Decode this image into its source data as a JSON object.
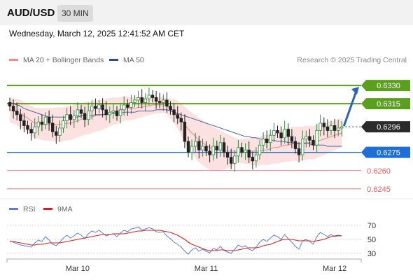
{
  "header": {
    "pair": "AUD/USD",
    "timeframe": "30 MIN"
  },
  "datetime": "Wednesday, March 12, 2025 12:41:52 AM CET",
  "legend": [
    {
      "label": "MA 20 + Bollinger Bands",
      "color": "#f28b82"
    },
    {
      "label": "MA 50",
      "color": "#2b4e8c"
    }
  ],
  "credit": "Research © 2025 Trading Central",
  "rsi_legend": [
    {
      "label": "RSI",
      "color": "#5b7fd6"
    },
    {
      "label": "9MA",
      "color": "#d62020"
    }
  ],
  "chart_data": [
    {
      "type": "candlestick",
      "y_range": [
        0.6238,
        0.6345
      ],
      "x_ticks": [
        {
          "label": "Mar 10",
          "index": 19
        },
        {
          "label": "Mar 11",
          "index": 55
        },
        {
          "label": "Mar 12",
          "index": 91
        }
      ],
      "levels": [
        {
          "value": 0.633,
          "label": "0.6330",
          "kind": "resistance",
          "color": "#5aa01e",
          "badge": true
        },
        {
          "value": 0.6315,
          "label": "0.6315",
          "kind": "resistance",
          "color": "#5aa01e",
          "badge": true
        },
        {
          "value": 0.6296,
          "label": "0.6296",
          "kind": "last",
          "color": "#222222",
          "badge": true
        },
        {
          "value": 0.6275,
          "label": "0.6275",
          "kind": "pivot",
          "color": "#1d6fd6",
          "badge": true
        },
        {
          "value": 0.626,
          "label": "0.6260",
          "kind": "support",
          "color": "#e06060",
          "badge": false
        },
        {
          "value": 0.6245,
          "label": "0.6245",
          "kind": "support",
          "color": "#e06060",
          "badge": false
        }
      ],
      "close": [
        0.6313,
        0.6309,
        0.6306,
        0.6301,
        0.6297,
        0.6294,
        0.6291,
        0.6296,
        0.63,
        0.6298,
        0.6304,
        0.6299,
        0.6292,
        0.6289,
        0.6295,
        0.6301,
        0.6306,
        0.6302,
        0.6305,
        0.631,
        0.6307,
        0.6302,
        0.6309,
        0.6313,
        0.6311,
        0.6314,
        0.631,
        0.6306,
        0.6308,
        0.6309,
        0.6305,
        0.631,
        0.6314,
        0.6312,
        0.6316,
        0.6318,
        0.632,
        0.6316,
        0.6319,
        0.6322,
        0.632,
        0.6317,
        0.6316,
        0.6318,
        0.6313,
        0.631,
        0.6306,
        0.6303,
        0.63,
        0.6284,
        0.6275,
        0.628,
        0.6284,
        0.6277,
        0.628,
        0.6276,
        0.6273,
        0.628,
        0.6277,
        0.6283,
        0.6275,
        0.6271,
        0.6266,
        0.6272,
        0.6279,
        0.6275,
        0.6277,
        0.6271,
        0.6268,
        0.6273,
        0.6281,
        0.6286,
        0.6283,
        0.6289,
        0.6293,
        0.6291,
        0.6287,
        0.6294,
        0.6288,
        0.6284,
        0.6278,
        0.6273,
        0.6286,
        0.6288,
        0.6285,
        0.6281,
        0.6293,
        0.6299,
        0.6296,
        0.6293,
        0.6297,
        0.6293,
        0.6295,
        0.6296
      ],
      "ma20": [
        0.631,
        0.6309,
        0.6308,
        0.6307,
        0.6305,
        0.6303,
        0.6301,
        0.6299,
        0.6299,
        0.6298,
        0.6298,
        0.6298,
        0.6298,
        0.6298,
        0.6298,
        0.6298,
        0.6299,
        0.6299,
        0.63,
        0.6301,
        0.6302,
        0.6303,
        0.6303,
        0.6304,
        0.6305,
        0.6305,
        0.6306,
        0.6307,
        0.6308,
        0.6309,
        0.6309,
        0.631,
        0.6311,
        0.6311,
        0.6311,
        0.6311,
        0.6312,
        0.6312,
        0.6313,
        0.6313,
        0.6314,
        0.6314,
        0.6314,
        0.6314,
        0.6313,
        0.6311,
        0.6309,
        0.6306,
        0.6302,
        0.6298,
        0.6294,
        0.6291,
        0.6288,
        0.6285,
        0.6283,
        0.6281,
        0.6279,
        0.6278,
        0.6277,
        0.6277,
        0.6276,
        0.6276,
        0.6276,
        0.6276,
        0.6276,
        0.6276,
        0.6276,
        0.6276,
        0.6276,
        0.6276,
        0.6276,
        0.6277,
        0.6277,
        0.6278,
        0.6279,
        0.6279,
        0.628,
        0.6281,
        0.6281,
        0.6282,
        0.6282,
        0.6282,
        0.6282,
        0.6283,
        0.6283,
        0.6283,
        0.6284,
        0.6285,
        0.6286,
        0.6287,
        0.6288,
        0.6289,
        0.629,
        0.6291
      ],
      "ma50": [
        0.6316,
        0.6315,
        0.6314,
        0.6313,
        0.6311,
        0.631,
        0.6309,
        0.6308,
        0.6307,
        0.6306,
        0.6305,
        0.6304,
        0.6304,
        0.6304,
        0.6304,
        0.6304,
        0.6304,
        0.6304,
        0.6304,
        0.6304,
        0.6305,
        0.6305,
        0.6305,
        0.6305,
        0.6306,
        0.6306,
        0.6306,
        0.6306,
        0.6307,
        0.6307,
        0.6307,
        0.6307,
        0.6308,
        0.6308,
        0.6308,
        0.6308,
        0.6309,
        0.6309,
        0.6309,
        0.6309,
        0.6309,
        0.631,
        0.631,
        0.631,
        0.631,
        0.6309,
        0.6308,
        0.6307,
        0.6306,
        0.6305,
        0.6304,
        0.6303,
        0.6302,
        0.6301,
        0.63,
        0.6299,
        0.6298,
        0.6297,
        0.6296,
        0.6295,
        0.6294,
        0.6293,
        0.6292,
        0.6291,
        0.629,
        0.6289,
        0.6288,
        0.6288,
        0.6287,
        0.6287,
        0.6286,
        0.6286,
        0.6285,
        0.6285,
        0.6285,
        0.6284,
        0.6284,
        0.6284,
        0.6283,
        0.6283,
        0.6283,
        0.6282,
        0.6282,
        0.6282,
        0.6282,
        0.6281,
        0.6281,
        0.6281,
        0.6281,
        0.628,
        0.628,
        0.628,
        0.628,
        0.628
      ],
      "projection": {
        "from_index": 93,
        "from_value": 0.6296,
        "to_value": 0.633
      }
    },
    {
      "type": "line",
      "title": "RSI",
      "y_range": [
        20,
        80
      ],
      "y_ticks": [
        70,
        50,
        30
      ],
      "rsi": [
        48,
        46,
        44,
        42,
        41,
        40,
        39,
        45,
        49,
        47,
        54,
        49,
        43,
        41,
        46,
        52,
        56,
        52,
        55,
        59,
        56,
        51,
        58,
        62,
        60,
        63,
        59,
        55,
        57,
        58,
        54,
        59,
        63,
        61,
        65,
        66,
        68,
        63,
        65,
        67,
        65,
        61,
        60,
        61,
        55,
        51,
        46,
        43,
        39,
        33,
        29,
        35,
        38,
        33,
        36,
        33,
        31,
        37,
        35,
        40,
        34,
        32,
        30,
        36,
        42,
        39,
        41,
        36,
        34,
        39,
        46,
        50,
        47,
        52,
        56,
        54,
        50,
        57,
        51,
        46,
        40,
        36,
        48,
        50,
        47,
        43,
        54,
        60,
        57,
        54,
        57,
        54,
        55,
        55
      ],
      "rsi_ma": [
        47,
        47,
        46,
        45,
        44,
        43,
        42,
        42,
        43,
        43,
        44,
        45,
        45,
        45,
        45,
        46,
        47,
        48,
        49,
        50,
        51,
        52,
        53,
        54,
        55,
        56,
        57,
        57,
        57,
        58,
        58,
        58,
        58,
        59,
        60,
        61,
        62,
        62,
        63,
        63,
        63,
        63,
        63,
        62,
        61,
        60,
        58,
        56,
        53,
        50,
        46,
        43,
        41,
        39,
        37,
        35,
        34,
        34,
        34,
        35,
        35,
        34,
        34,
        34,
        35,
        36,
        37,
        38,
        38,
        38,
        39,
        41,
        42,
        43,
        45,
        47,
        49,
        50,
        50,
        50,
        49,
        48,
        48,
        48,
        48,
        47,
        48,
        49,
        50,
        52,
        54,
        55,
        56,
        55
      ]
    }
  ]
}
